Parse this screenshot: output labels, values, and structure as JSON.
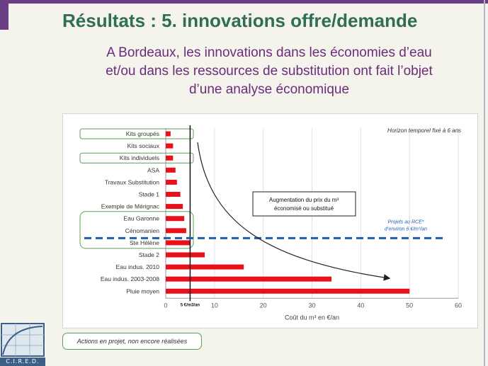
{
  "slide": {
    "title": "Résultats : 5. innovations offre/demande",
    "subtitle_lines": [
      "A Bordeaux, les innovations dans les économies d’eau",
      "et/ou dans les ressources de substitution ont fait l’objet",
      "d’une analyse économique"
    ]
  },
  "chart_data": {
    "type": "bar",
    "orientation": "horizontal",
    "categories": [
      "Kits groupés",
      "Kits sociaux",
      "Kits individuels",
      "ASA",
      "Travaux Substitution",
      "Stade 1",
      "Exemple de Mérignac",
      "Eau Garonne",
      "Cénomanien",
      "Ste Hélène",
      "Stade 2",
      "Eau indus. 2010",
      "Eau indus. 2003-2008",
      "Pluie moyen"
    ],
    "values": [
      1,
      1.5,
      1.5,
      2,
      2.3,
      3,
      3.5,
      3.8,
      4.2,
      5,
      8,
      16,
      34,
      50
    ],
    "xlabel": "Coût du m³ en €/an",
    "ylabel": "",
    "xlim": [
      0,
      60
    ],
    "xticks": [
      "0",
      "10",
      "20",
      "30",
      "40",
      "50",
      "60"
    ],
    "bar_color": "#e8101a",
    "grid": true,
    "highlighted_categories": [
      "Kits groupés",
      "Kits individuels",
      "Eau Garonne",
      "Cénomanien",
      "Ste Hélène"
    ],
    "reference_line": {
      "x": 5,
      "label": "5 €/m3/an"
    },
    "rce_line": {
      "label_lines": [
        "Projets au RCE*",
        "d’environ 6 €/m³/an"
      ],
      "color": "#1f5fb0"
    },
    "annotations": {
      "horizon": "Horizon temporel fixé à 6 ans",
      "arrow_box_lines": [
        "Augmentation du prix du m³",
        "économisé ou substitué"
      ]
    }
  },
  "legend": {
    "label": "Actions en projet, non encore réalisées"
  },
  "logo": {
    "name": "C.I.R.E.D."
  },
  "colors": {
    "title": "#2f6e54",
    "subtitle": "#6b2d7a",
    "accent": "#6a3f86",
    "highlight_border": "#5c9e5a"
  }
}
